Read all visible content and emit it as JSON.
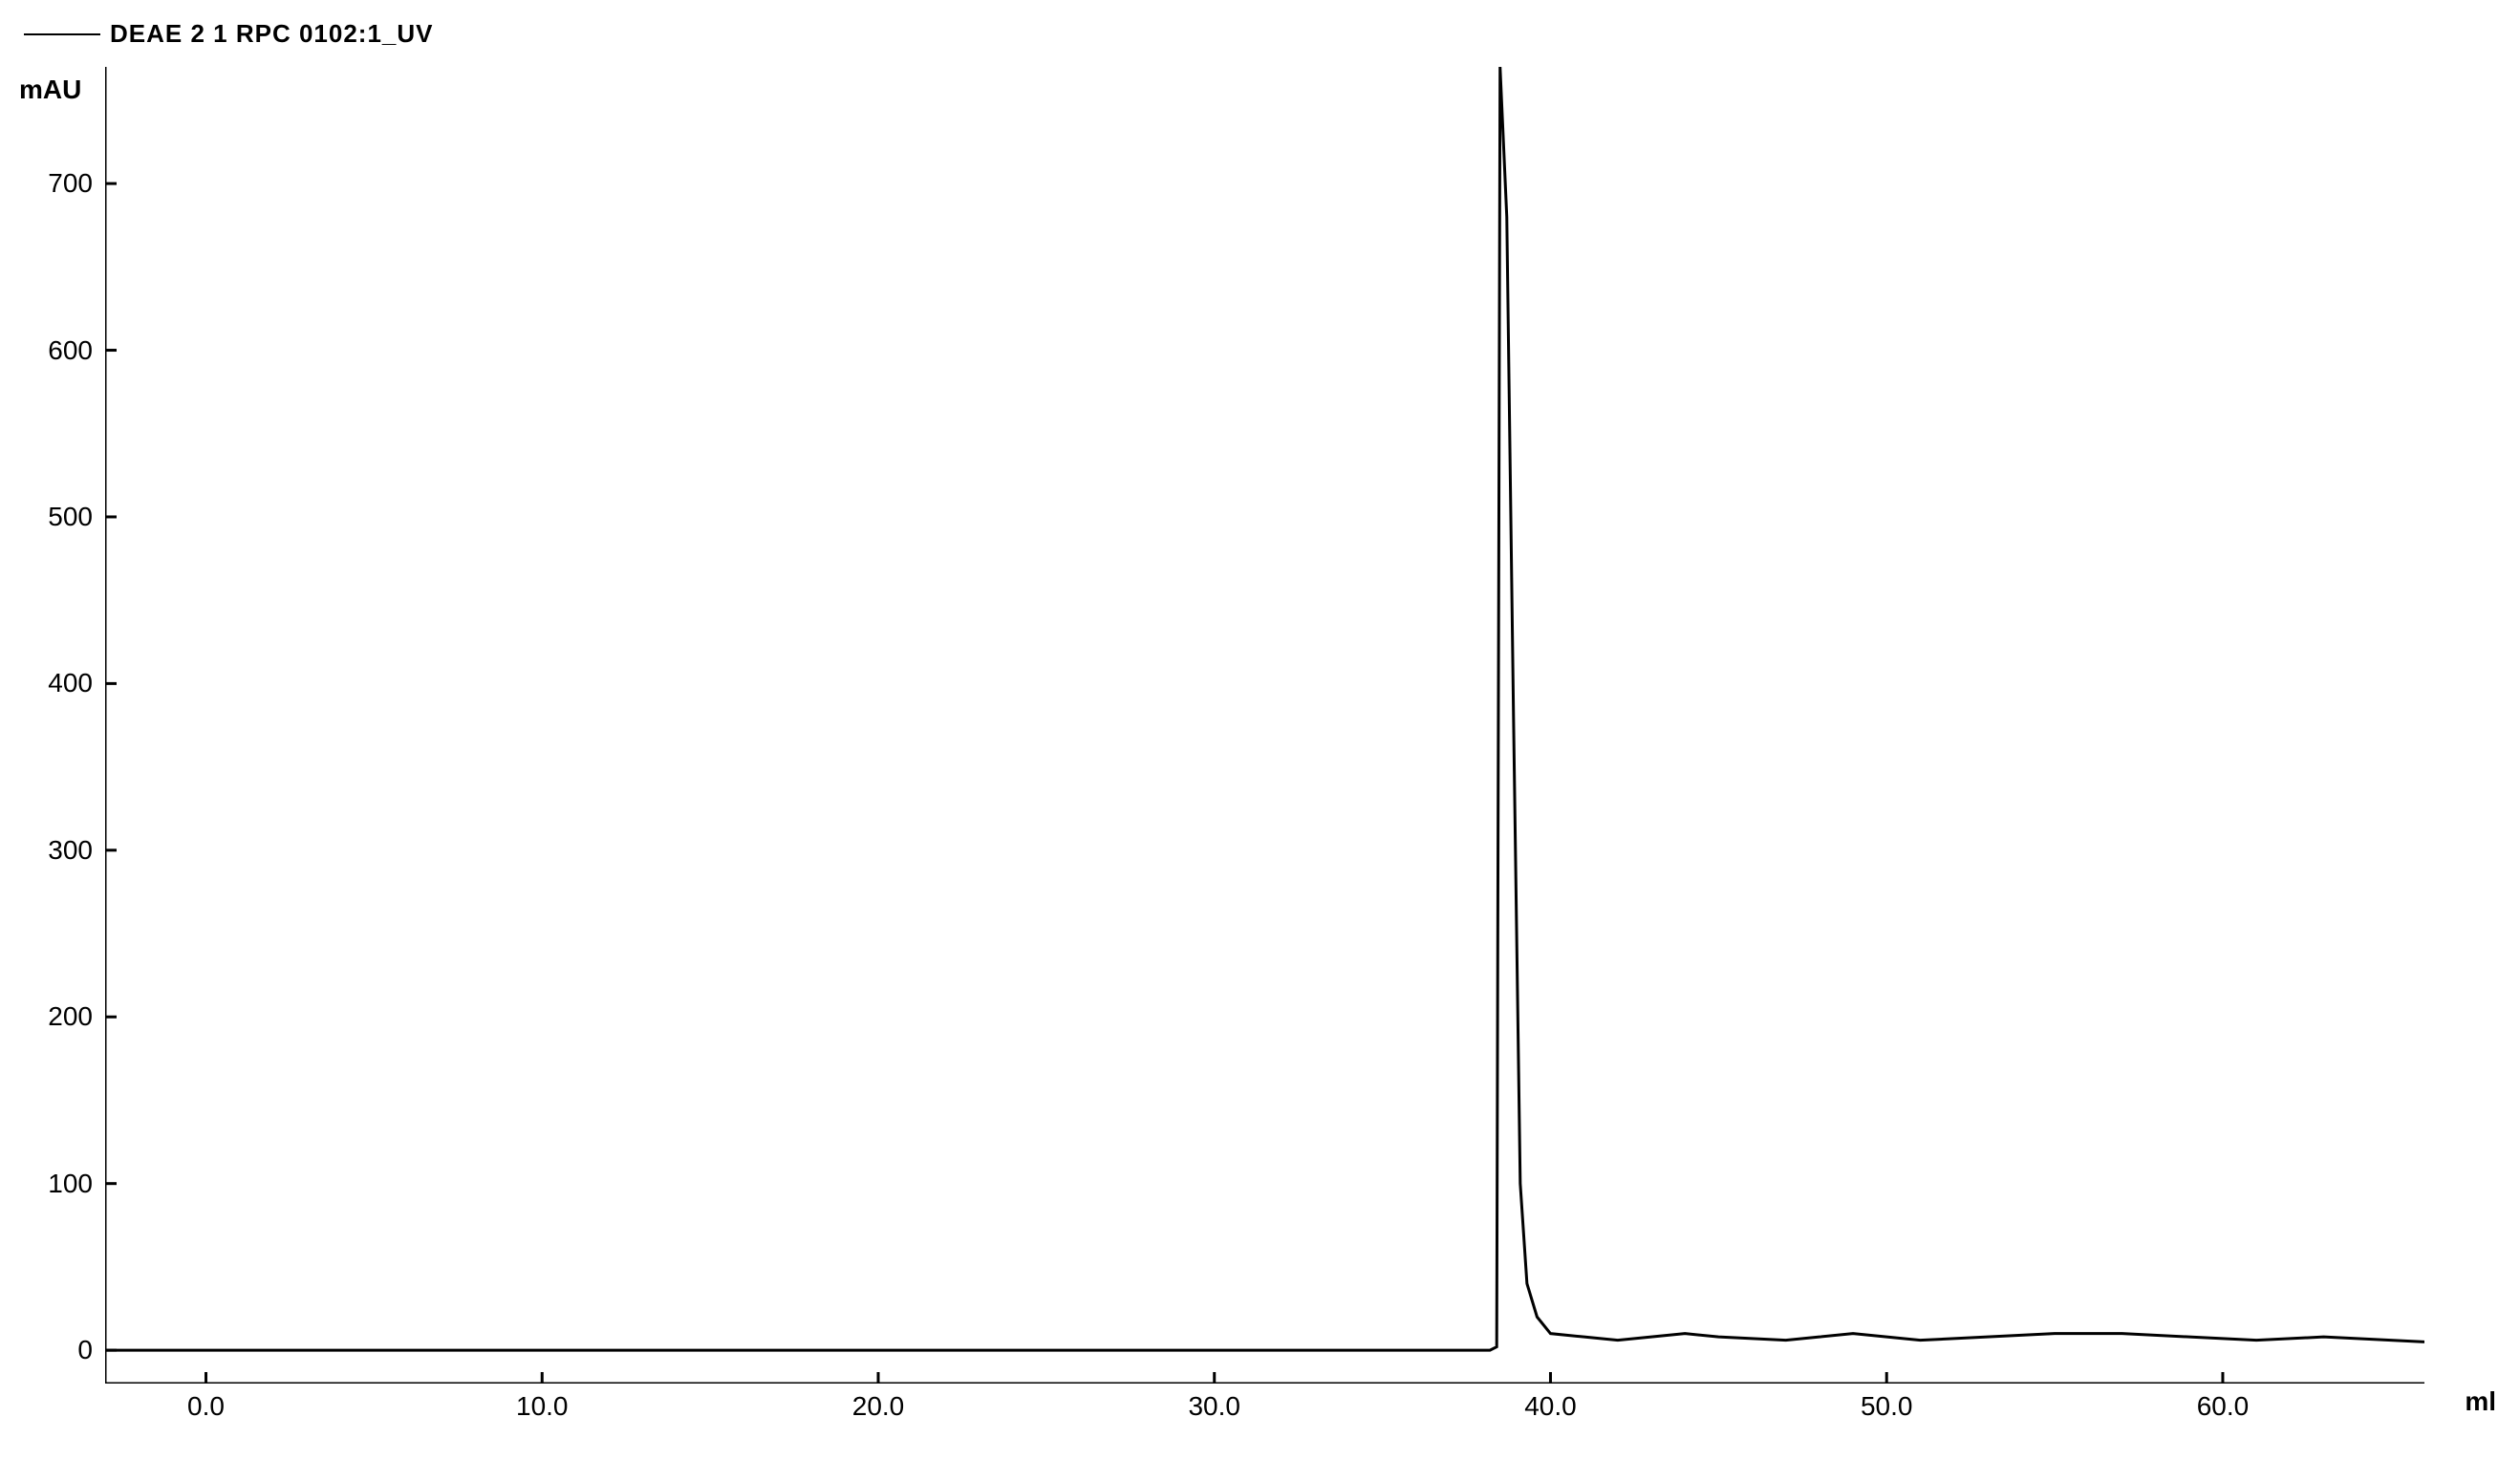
{
  "chart": {
    "type": "line",
    "legend_label": "DEAE 2   1  RPC 0102:1_UV",
    "y_axis_label": "mAU",
    "x_axis_label": "ml",
    "xlim": [
      -3,
      66
    ],
    "ylim": [
      -20,
      770
    ],
    "x_ticks": [
      0.0,
      10.0,
      20.0,
      30.0,
      40.0,
      50.0,
      60.0
    ],
    "x_tick_labels": [
      "0.0",
      "10.0",
      "20.0",
      "30.0",
      "40.0",
      "50.0",
      "60.0"
    ],
    "y_ticks": [
      0,
      100,
      200,
      300,
      400,
      500,
      600,
      700
    ],
    "y_tick_labels": [
      "0",
      "100",
      "200",
      "300",
      "400",
      "500",
      "600",
      "700"
    ],
    "line_color": "#000000",
    "line_width": 3,
    "axis_color": "#000000",
    "axis_width": 3,
    "tick_length": 12,
    "background_color": "#ffffff",
    "font_size_labels": 28,
    "font_size_ticks": 28,
    "data_points": [
      [
        -3,
        0
      ],
      [
        0,
        0
      ],
      [
        5,
        0
      ],
      [
        10,
        0
      ],
      [
        15,
        0
      ],
      [
        20,
        0
      ],
      [
        25,
        0
      ],
      [
        30,
        0
      ],
      [
        35,
        0
      ],
      [
        37,
        0
      ],
      [
        38.2,
        0
      ],
      [
        38.4,
        2
      ],
      [
        38.5,
        770
      ],
      [
        38.7,
        680
      ],
      [
        38.9,
        380
      ],
      [
        39.1,
        100
      ],
      [
        39.3,
        40
      ],
      [
        39.6,
        20
      ],
      [
        40,
        10
      ],
      [
        41,
        8
      ],
      [
        42,
        6
      ],
      [
        43,
        8
      ],
      [
        44,
        10
      ],
      [
        45,
        8
      ],
      [
        47,
        6
      ],
      [
        48,
        8
      ],
      [
        49,
        10
      ],
      [
        50,
        8
      ],
      [
        51,
        6
      ],
      [
        53,
        8
      ],
      [
        55,
        10
      ],
      [
        57,
        10
      ],
      [
        59,
        8
      ],
      [
        61,
        6
      ],
      [
        63,
        8
      ],
      [
        65,
        6
      ],
      [
        66,
        5
      ]
    ]
  }
}
